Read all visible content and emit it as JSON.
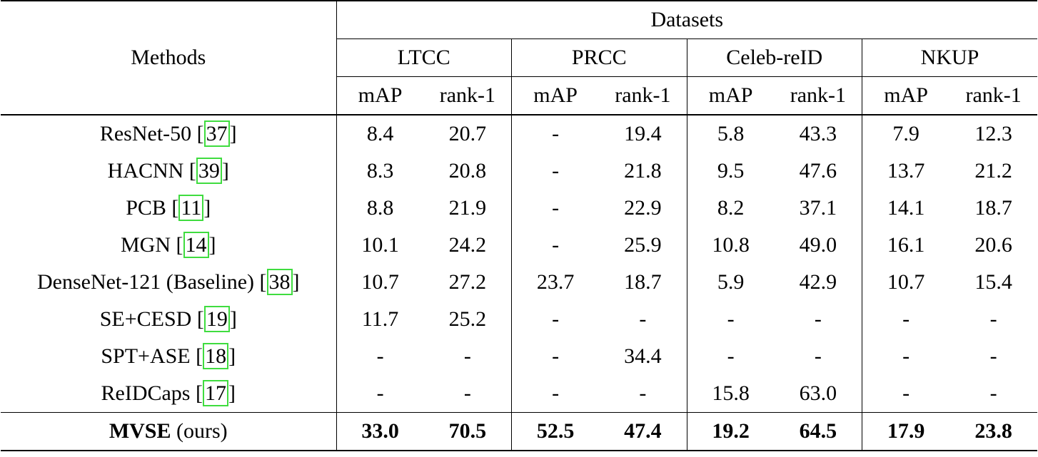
{
  "header": {
    "methods": "Methods",
    "datasets": "Datasets",
    "dataset_names": [
      "LTCC",
      "PRCC",
      "Celeb-reID",
      "NKUP"
    ],
    "metrics": [
      "mAP",
      "rank-1",
      "mAP",
      "rank-1",
      "mAP",
      "rank-1",
      "mAP",
      "rank-1"
    ]
  },
  "table": {
    "rows": [
      {
        "method": "ResNet-50",
        "ref": "37",
        "values": [
          "8.4",
          "20.7",
          "-",
          "19.4",
          "5.8",
          "43.3",
          "7.9",
          "12.3"
        ]
      },
      {
        "method": "HACNN",
        "ref": "39",
        "values": [
          "8.3",
          "20.8",
          "-",
          "21.8",
          "9.5",
          "47.6",
          "13.7",
          "21.2"
        ]
      },
      {
        "method": "PCB",
        "ref": "11",
        "values": [
          "8.8",
          "21.9",
          "-",
          "22.9",
          "8.2",
          "37.1",
          "14.1",
          "18.7"
        ]
      },
      {
        "method": "MGN",
        "ref": "14",
        "values": [
          "10.1",
          "24.2",
          "-",
          "25.9",
          "10.8",
          "49.0",
          "16.1",
          "20.6"
        ]
      },
      {
        "method": "DenseNet-121 (Baseline)",
        "ref": "38",
        "values": [
          "10.7",
          "27.2",
          "23.7",
          "18.7",
          "5.9",
          "42.9",
          "10.7",
          "15.4"
        ]
      },
      {
        "method": "SE+CESD",
        "ref": "19",
        "values": [
          "11.7",
          "25.2",
          "-",
          "-",
          "-",
          "-",
          "-",
          "-"
        ]
      },
      {
        "method": "SPT+ASE",
        "ref": "18",
        "values": [
          "-",
          "-",
          "-",
          "34.4",
          "-",
          "-",
          "-",
          "-"
        ]
      },
      {
        "method": "ReIDCaps",
        "ref": "17",
        "values": [
          "-",
          "-",
          "-",
          "-",
          "15.8",
          "63.0",
          "-",
          "-"
        ]
      }
    ],
    "final_row": {
      "method": "MVSE",
      "note": "(ours)",
      "values": [
        "33.0",
        "70.5",
        "52.5",
        "47.4",
        "19.2",
        "64.5",
        "17.9",
        "23.8"
      ]
    }
  }
}
